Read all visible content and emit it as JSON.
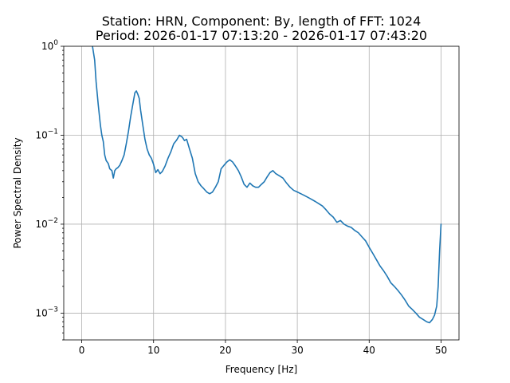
{
  "chart_data": {
    "type": "line",
    "title": [
      "Station: HRN, Component: By, length of FFT: 1024",
      "Period: 2026-01-17 07:13:20 - 2026-01-17 07:43:20"
    ],
    "xlabel": "Frequency [Hz]",
    "ylabel": "Power Spectral Density",
    "xlim": [
      -2.5,
      52.5
    ],
    "ylim": [
      0.0005,
      1
    ],
    "yscale": "log",
    "grid": true,
    "x_ticks": [
      0,
      10,
      20,
      30,
      40,
      50
    ],
    "x_tick_labels": [
      "0",
      "10",
      "20",
      "30",
      "40",
      "50"
    ],
    "y_ticks": [
      0.001,
      0.01,
      0.1,
      1
    ],
    "y_tick_labels": [
      {
        "base": "10",
        "exp": "−3"
      },
      {
        "base": "10",
        "exp": "−2"
      },
      {
        "base": "10",
        "exp": "−1"
      },
      {
        "base": "10",
        "exp": "0"
      }
    ],
    "series": [
      {
        "color": "#1f77b4",
        "x": [
          1.5,
          1.8,
          2.0,
          2.3,
          2.6,
          2.8,
          3.0,
          3.2,
          3.4,
          3.7,
          3.9,
          4.2,
          4.4,
          4.6,
          4.8,
          5.0,
          5.3,
          5.6,
          5.9,
          6.2,
          6.5,
          6.8,
          7.1,
          7.4,
          7.6,
          7.8,
          8.0,
          8.2,
          8.5,
          8.8,
          9.1,
          9.4,
          9.7,
          10.0,
          10.3,
          10.6,
          10.9,
          11.2,
          11.6,
          12.0,
          12.4,
          12.8,
          13.2,
          13.6,
          14.0,
          14.3,
          14.6,
          15.0,
          15.4,
          15.8,
          16.2,
          16.6,
          17.0,
          17.4,
          17.8,
          18.2,
          18.6,
          19.0,
          19.4,
          19.8,
          20.2,
          20.6,
          21.0,
          21.4,
          21.8,
          22.2,
          22.6,
          23.0,
          23.4,
          23.8,
          24.2,
          24.6,
          25.0,
          25.4,
          25.8,
          26.2,
          26.6,
          27.0,
          27.5,
          28.0,
          28.5,
          29.0,
          29.5,
          30.0,
          30.5,
          31.0,
          31.5,
          32.0,
          32.5,
          33.0,
          33.5,
          34.0,
          34.5,
          35.0,
          35.5,
          36.0,
          36.5,
          37.0,
          37.5,
          38.0,
          38.5,
          39.0,
          39.5,
          40.0,
          40.5,
          41.0,
          41.5,
          42.0,
          42.5,
          43.0,
          43.5,
          44.0,
          44.5,
          45.0,
          45.5,
          46.0,
          46.5,
          47.0,
          47.5,
          48.0,
          48.4,
          48.8,
          49.1,
          49.4,
          49.6,
          49.8,
          50.0
        ],
        "y": [
          1.0,
          0.7,
          0.4,
          0.22,
          0.13,
          0.1,
          0.085,
          0.06,
          0.052,
          0.048,
          0.042,
          0.04,
          0.033,
          0.04,
          0.042,
          0.043,
          0.046,
          0.052,
          0.06,
          0.08,
          0.11,
          0.16,
          0.22,
          0.3,
          0.315,
          0.29,
          0.26,
          0.19,
          0.13,
          0.09,
          0.07,
          0.06,
          0.055,
          0.047,
          0.038,
          0.041,
          0.037,
          0.039,
          0.045,
          0.055,
          0.065,
          0.08,
          0.088,
          0.1,
          0.095,
          0.087,
          0.09,
          0.07,
          0.055,
          0.037,
          0.03,
          0.027,
          0.025,
          0.023,
          0.022,
          0.023,
          0.026,
          0.03,
          0.042,
          0.046,
          0.05,
          0.053,
          0.05,
          0.045,
          0.04,
          0.034,
          0.028,
          0.026,
          0.029,
          0.027,
          0.026,
          0.026,
          0.028,
          0.03,
          0.034,
          0.038,
          0.04,
          0.037,
          0.035,
          0.033,
          0.029,
          0.026,
          0.024,
          0.023,
          0.022,
          0.021,
          0.02,
          0.019,
          0.018,
          0.017,
          0.016,
          0.0145,
          0.013,
          0.012,
          0.0105,
          0.011,
          0.01,
          0.0095,
          0.0092,
          0.0085,
          0.008,
          0.0072,
          0.0065,
          0.0055,
          0.0047,
          0.004,
          0.0034,
          0.003,
          0.0026,
          0.0022,
          0.002,
          0.0018,
          0.0016,
          0.0014,
          0.0012,
          0.0011,
          0.001,
          0.0009,
          0.00085,
          0.0008,
          0.00078,
          0.00085,
          0.00095,
          0.0012,
          0.002,
          0.005,
          0.01
        ]
      }
    ]
  }
}
